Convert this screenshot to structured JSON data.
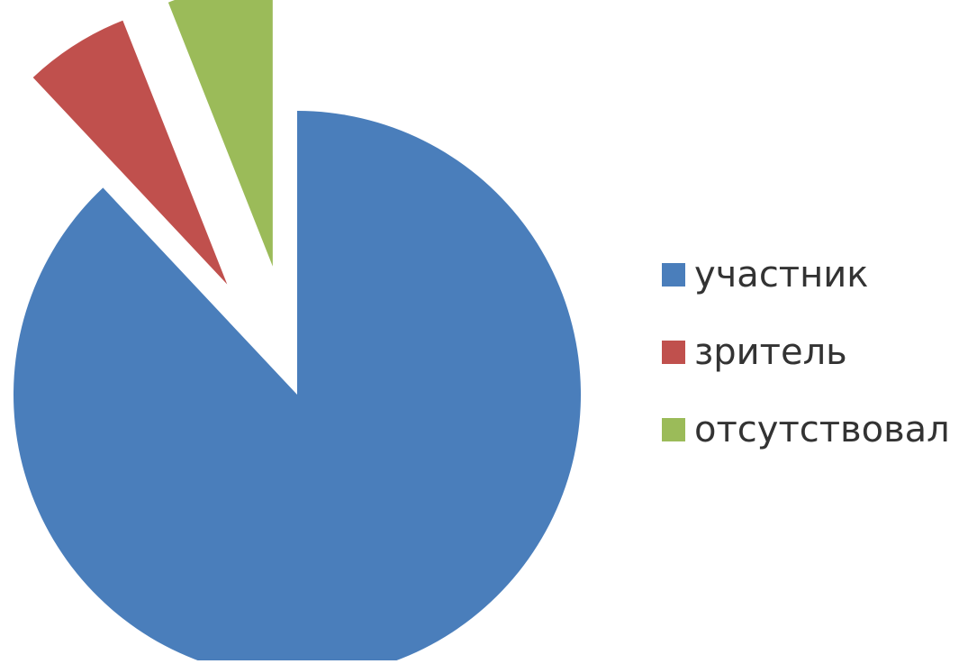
{
  "chart_data": {
    "type": "pie",
    "categories": [
      "участник",
      "зритель",
      "отсутствовал"
    ],
    "values": [
      88,
      6,
      6
    ],
    "colors": [
      "#4A7EBB",
      "#C0504D",
      "#9BBB59"
    ],
    "exploded": [
      false,
      true,
      true
    ],
    "legend_position": "right"
  },
  "legend": {
    "items": [
      {
        "label": "участник",
        "color": "#4A7EBB"
      },
      {
        "label": "зритель",
        "color": "#C0504D"
      },
      {
        "label": "отсутствовал",
        "color": "#9BBB59"
      }
    ]
  }
}
